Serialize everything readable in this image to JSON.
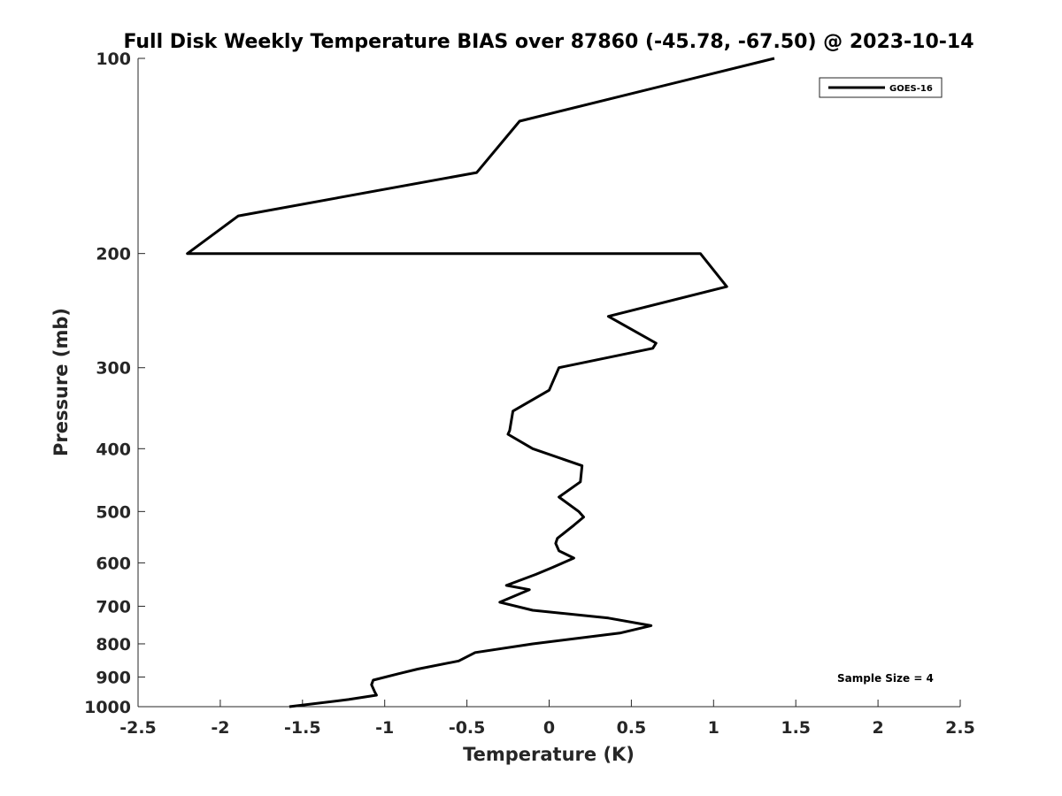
{
  "chart_data": {
    "type": "line",
    "title": "Full Disk Weekly Temperature BIAS over 87860 (-45.78, -67.50) @ 2023-10-14",
    "xlabel": "Temperature (K)",
    "ylabel": "Pressure (mb)",
    "xlim": [
      -2.5,
      2.5
    ],
    "ylim": [
      1000,
      100
    ],
    "y_scale": "log",
    "y_reversed": true,
    "x_ticks": [
      -2.5,
      -2,
      -1.5,
      -1,
      -0.5,
      0,
      0.5,
      1,
      1.5,
      2,
      2.5
    ],
    "x_tick_labels": [
      "-2.5",
      "-2",
      "-1.5",
      "-1",
      "-0.5",
      "0",
      "0.5",
      "1",
      "1.5",
      "2",
      "2.5"
    ],
    "y_ticks": [
      100,
      200,
      300,
      400,
      500,
      600,
      700,
      800,
      900,
      1000
    ],
    "y_tick_labels": [
      "100",
      "200",
      "300",
      "400",
      "500",
      "600",
      "700",
      "800",
      "900",
      "1000"
    ],
    "grid": false,
    "legend_position": "top-right",
    "annotation": "Sample Size = 4",
    "series": [
      {
        "name": "GOES-16",
        "color": "#000000",
        "points": [
          [
            1.37,
            100
          ],
          [
            -0.18,
            125
          ],
          [
            -0.44,
            150
          ],
          [
            -1.89,
            175
          ],
          [
            -2.2,
            200
          ],
          [
            0.92,
            200
          ],
          [
            1.08,
            225
          ],
          [
            0.36,
            250
          ],
          [
            0.65,
            275
          ],
          [
            0.63,
            280
          ],
          [
            0.06,
            300
          ],
          [
            0.0,
            325
          ],
          [
            -0.22,
            350
          ],
          [
            -0.24,
            375
          ],
          [
            -0.25,
            380
          ],
          [
            -0.1,
            400
          ],
          [
            0.2,
            425
          ],
          [
            0.19,
            450
          ],
          [
            0.06,
            475
          ],
          [
            0.18,
            500
          ],
          [
            0.21,
            510
          ],
          [
            0.15,
            525
          ],
          [
            0.05,
            550
          ],
          [
            0.04,
            560
          ],
          [
            0.06,
            575
          ],
          [
            0.15,
            590
          ],
          [
            0.02,
            610
          ],
          [
            -0.08,
            625
          ],
          [
            -0.26,
            650
          ],
          [
            -0.12,
            660
          ],
          [
            -0.3,
            690
          ],
          [
            -0.1,
            710
          ],
          [
            0.36,
            730
          ],
          [
            0.62,
            750
          ],
          [
            0.43,
            770
          ],
          [
            -0.1,
            800
          ],
          [
            -0.45,
            825
          ],
          [
            -0.55,
            850
          ],
          [
            -0.8,
            875
          ],
          [
            -0.92,
            890
          ],
          [
            -1.07,
            910
          ],
          [
            -1.08,
            925
          ],
          [
            -1.06,
            950
          ],
          [
            -1.05,
            960
          ],
          [
            -1.22,
            975
          ],
          [
            -1.58,
            1000
          ]
        ]
      }
    ]
  }
}
